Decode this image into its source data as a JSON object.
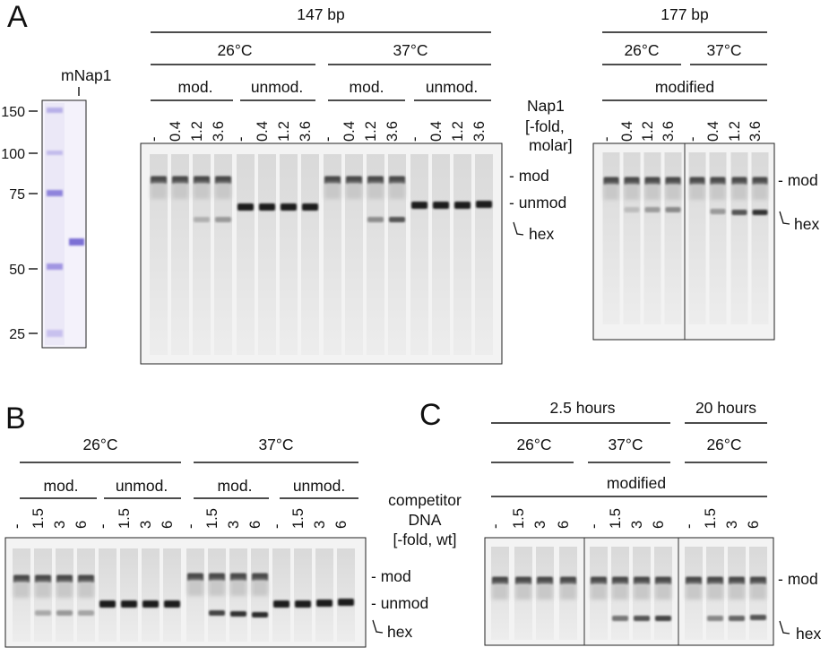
{
  "panel_letters": {
    "a": "A",
    "b": "B",
    "c": "C"
  },
  "panel_a": {
    "protein_gel": {
      "lane_label": "mNap1",
      "mw_markers": [
        "150",
        "100",
        "75",
        "50",
        "25"
      ]
    },
    "gel_147": {
      "title": "147 bp",
      "temperatures": [
        "26°C",
        "37°C"
      ],
      "groups": [
        "mod.",
        "unmod.",
        "mod.",
        "unmod."
      ],
      "lane_labels": [
        "-",
        "0.4",
        "1.2",
        "3.6",
        "-",
        "0.4",
        "1.2",
        "3.6",
        "-",
        "0.4",
        "1.2",
        "3.6",
        "-",
        "0.4",
        "1.2",
        "3.6"
      ],
      "axis_label": [
        "Nap1",
        "[-fold,",
        "molar]"
      ],
      "band_labels": [
        "- mod",
        "- unmod",
        "hex"
      ]
    },
    "gel_177": {
      "title": "177 bp",
      "temperatures": [
        "26°C",
        "37°C"
      ],
      "group": "modified",
      "lane_labels": [
        "-",
        "0.4",
        "1.2",
        "3.6",
        "-",
        "0.4",
        "1.2",
        "3.6"
      ],
      "band_labels": [
        "- mod",
        "hex"
      ]
    }
  },
  "panel_b": {
    "temperatures": [
      "26°C",
      "37°C"
    ],
    "groups": [
      "mod.",
      "unmod.",
      "mod.",
      "unmod."
    ],
    "lane_labels": [
      "-",
      "1.5",
      "3",
      "6",
      "-",
      "1.5",
      "3",
      "6",
      "-",
      "1.5",
      "3",
      "6",
      "-",
      "1.5",
      "3",
      "6"
    ],
    "axis_label": [
      "competitor",
      "DNA",
      "[-fold, wt]"
    ],
    "band_labels": [
      "- mod",
      "- unmod",
      "hex"
    ]
  },
  "panel_c": {
    "times": [
      "2.5 hours",
      "20 hours"
    ],
    "temperatures": [
      "26°C",
      "37°C",
      "26°C"
    ],
    "group": "modified",
    "lane_labels": [
      "-",
      "1.5",
      "3",
      "6",
      "-",
      "1.5",
      "3",
      "6",
      "-",
      "1.5",
      "3",
      "6"
    ],
    "band_labels": [
      "- mod",
      "hex"
    ]
  }
}
